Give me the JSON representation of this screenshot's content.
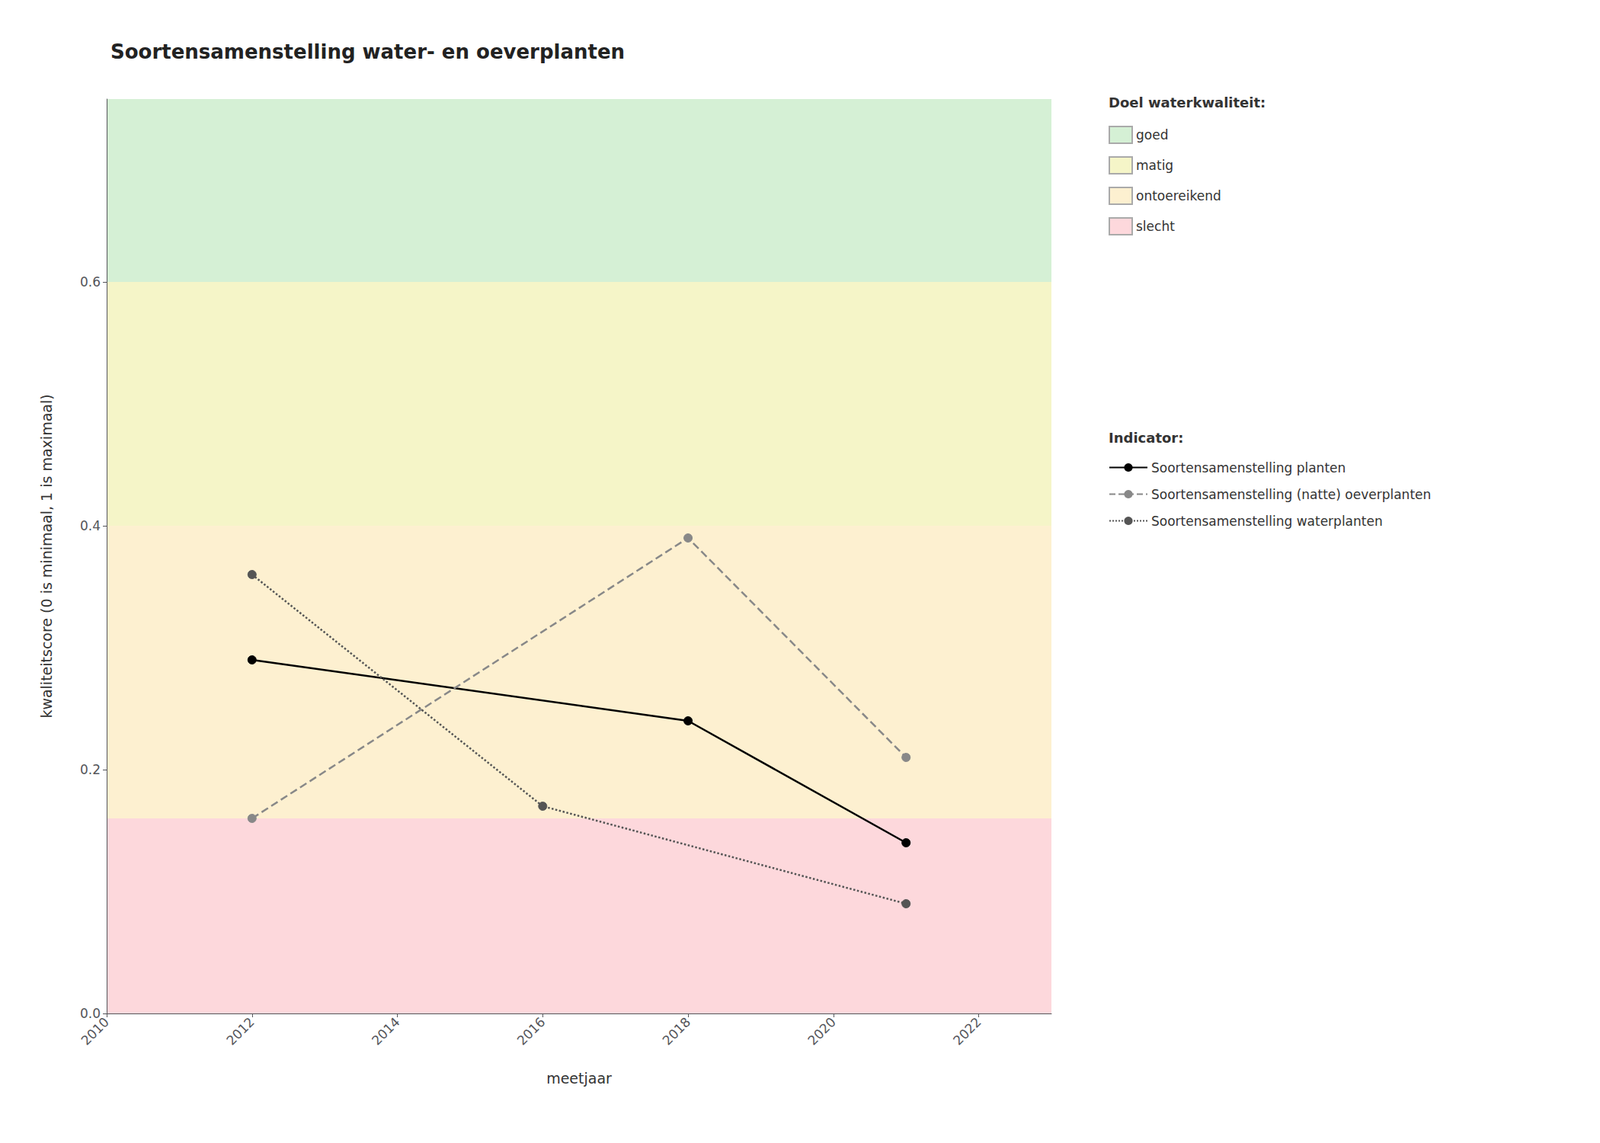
{
  "chart_data": {
    "type": "line",
    "title": "Soortensamenstelling water- en oeverplanten",
    "xlabel": "meetjaar",
    "ylabel": "kwaliteitscore (0 is minimaal, 1 is maximaal)",
    "xlim": [
      2010,
      2023
    ],
    "ylim": [
      0.0,
      0.75
    ],
    "xticks": [
      2010,
      2012,
      2014,
      2016,
      2018,
      2020,
      2022
    ],
    "yticks": [
      {
        "value": 0.0,
        "label": "0.0"
      },
      0.2,
      0.4,
      0.6
    ],
    "grid": true,
    "legend": "right",
    "zones_title": "Doel waterkwaliteit:",
    "zones": [
      {
        "name": "goed",
        "ymin": 0.6,
        "ymax": 0.75,
        "color": "#d5f0d5"
      },
      {
        "name": "matig",
        "ymin": 0.4,
        "ymax": 0.6,
        "color": "#f5f5c8"
      },
      {
        "name": "ontoereikend",
        "ymin": 0.16,
        "ymax": 0.4,
        "color": "#fdf0d0"
      },
      {
        "name": "slecht",
        "ymin": 0.0,
        "ymax": 0.16,
        "color": "#fdd8dc"
      }
    ],
    "legend_title": "Indicator:",
    "series": [
      {
        "name": "Soortensamenstelling planten",
        "color": "#000000",
        "line_style": "solid",
        "marker": "circle",
        "x": [
          2012,
          2018,
          2021
        ],
        "values": [
          0.29,
          0.24,
          0.14
        ]
      },
      {
        "name": "Soortensamenstelling (natte) oeverplanten",
        "color": "#888888",
        "line_style": "dashed",
        "marker": "circle",
        "x": [
          2012,
          2018,
          2021
        ],
        "values": [
          0.16,
          0.39,
          0.21
        ]
      },
      {
        "name": "Soortensamenstelling waterplanten",
        "color": "#555555",
        "line_style": "dotted",
        "marker": "circle",
        "x": [
          2012,
          2016,
          2021
        ],
        "values": [
          0.36,
          0.17,
          0.09
        ]
      }
    ]
  }
}
